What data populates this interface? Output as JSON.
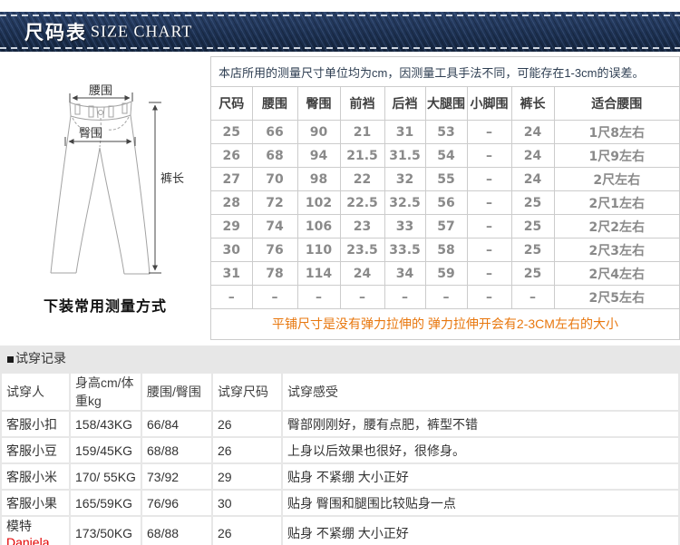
{
  "banner": {
    "title_cn": "尺码表",
    "title_en": "SIZE CHART"
  },
  "size_section": {
    "note": "本店所用的测量尺寸单位均为cm，因测量工具手法不同，可能存在1-3cm的误差。",
    "diagram": {
      "labels": {
        "waist": "腰围",
        "hip": "臀围",
        "length": "裤长"
      },
      "caption": "下装常用测量方式"
    },
    "table": {
      "headers": [
        "尺码",
        "腰围",
        "臀围",
        "前裆",
        "后裆",
        "大腿围",
        "小脚围",
        "裤长",
        "适合腰围"
      ],
      "rows": [
        [
          "25",
          "66",
          "90",
          "21",
          "31",
          "53",
          "–",
          "24",
          "1尺8左右"
        ],
        [
          "26",
          "68",
          "94",
          "21.5",
          "31.5",
          "54",
          "–",
          "24",
          "1尺9左右"
        ],
        [
          "27",
          "70",
          "98",
          "22",
          "32",
          "55",
          "–",
          "24",
          "2尺左右"
        ],
        [
          "28",
          "72",
          "102",
          "22.5",
          "32.5",
          "56",
          "–",
          "25",
          "2尺1左右"
        ],
        [
          "29",
          "74",
          "106",
          "23",
          "33",
          "57",
          "–",
          "25",
          "2尺2左右"
        ],
        [
          "30",
          "76",
          "110",
          "23.5",
          "33.5",
          "58",
          "–",
          "25",
          "2尺3左右"
        ],
        [
          "31",
          "78",
          "114",
          "24",
          "34",
          "59",
          "–",
          "25",
          "2尺4左右"
        ],
        [
          "–",
          "–",
          "–",
          "–",
          "–",
          "–",
          "–",
          "–",
          "2尺5左右"
        ]
      ]
    },
    "stretch_note": "平铺尺寸是没有弹力拉伸的 弹力拉伸开会有2-3CM左右的大小"
  },
  "fitting_section": {
    "title": "试穿记录",
    "table": {
      "headers": [
        "试穿人",
        "身高cm/体重kg",
        "腰围/臀围",
        "试穿尺码",
        "试穿感受"
      ],
      "rows": [
        {
          "person": "客服小扣",
          "person_red": "",
          "height_weight": "158/43KG",
          "waist_hip": "66/84",
          "size": "26",
          "feel": "臀部刚刚好，腰有点肥，裤型不错"
        },
        {
          "person": "客服小豆",
          "person_red": "",
          "height_weight": "159/45KG",
          "waist_hip": "68/88",
          "size": "26",
          "feel": "上身以后效果也很好，很修身。"
        },
        {
          "person": "客服小米",
          "person_red": "",
          "height_weight": "170/ 55KG",
          "waist_hip": "73/92",
          "size": "29",
          "feel": "贴身 不紧绷 大小正好"
        },
        {
          "person": "客服小果",
          "person_red": "",
          "height_weight": "165/59KG",
          "waist_hip": "76/96",
          "size": "30",
          "feel": "贴身 臀围和腿围比较贴身一点"
        },
        {
          "person": "模特",
          "person_red": "Daniela",
          "height_weight": "173/50KG",
          "waist_hip": "68/88",
          "size": "26",
          "feel": "贴身 不紧绷 大小正好"
        }
      ]
    }
  },
  "colors": {
    "denim": "#1d3152",
    "stitch": "#dde3ec",
    "orange_note": "#e8770e",
    "red_highlight": "#e30000",
    "table_border": "#cccccc",
    "band_bg": "#e7e7e7"
  }
}
